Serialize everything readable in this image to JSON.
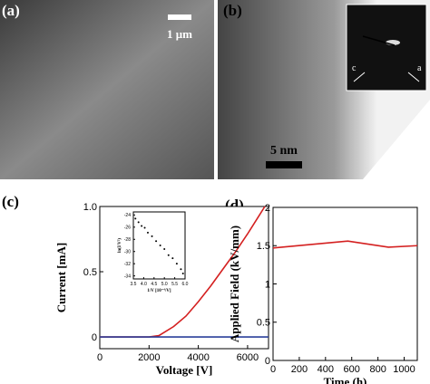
{
  "panel_labels": [
    "(a)",
    "(b)",
    "(c)",
    "(d)"
  ],
  "images": {
    "a_scale": "1 μm",
    "b_scale": "5 nm",
    "b_inset_left": "c",
    "b_inset_right": "a"
  },
  "chart_data": [
    {
      "type": "line",
      "y_label": "Current [mA]",
      "x_label": "Voltage [V]",
      "xlim": [
        0,
        6850
      ],
      "xticks": [
        0,
        2000,
        4000,
        6000
      ],
      "ylim": [
        -0.09,
        1.0
      ],
      "yticks": [
        0,
        0.5,
        {
          "value": 1,
          "label": "1.0"
        }
      ],
      "series": [
        {
          "color": "#d42020",
          "x": [
            0,
            2000,
            2400,
            3000,
            3500,
            4000,
            4500,
            5000,
            5500,
            6000,
            6500,
            6700
          ],
          "values": [
            0,
            0,
            0.01,
            0.08,
            0.16,
            0.27,
            0.39,
            0.52,
            0.65,
            0.79,
            0.94,
            1.0
          ]
        },
        {
          "color": "#2a3f9a",
          "x": [
            0,
            6850
          ],
          "values": [
            0,
            0
          ]
        }
      ]
    },
    {
      "type": "scatter",
      "y_label": "ln(I/V²)",
      "x_label": "1/V [10⁻⁴/V]",
      "xlim": [
        3.5,
        6.0
      ],
      "xticks": [
        3.5,
        {
          "value": 4,
          "label": "4.0"
        },
        4.5,
        {
          "value": 5,
          "label": "5.0"
        },
        5.5,
        {
          "value": 6,
          "label": "6.0"
        }
      ],
      "ylim": [
        -34.5,
        -23.5
      ],
      "yticks": [
        -24,
        -26,
        -28,
        -30,
        -32,
        -34
      ],
      "series": [
        {
          "color": "#000000",
          "x": [
            3.6,
            3.75,
            3.9,
            4.05,
            4.2,
            4.4,
            4.6,
            4.8,
            5.0,
            5.2,
            5.4,
            5.6,
            5.8,
            5.9
          ],
          "values": [
            -24.6,
            -25.2,
            -25.8,
            -26.1,
            -26.9,
            -27.5,
            -28.3,
            -29.0,
            -29.6,
            -30.6,
            -31.1,
            -32.0,
            -32.9,
            -33.6
          ]
        }
      ]
    },
    {
      "type": "line",
      "y_label": "Applied Field (kV/mm)",
      "x_label": "Time (h)",
      "xlim": [
        0,
        1100
      ],
      "xticks": [
        0,
        200,
        400,
        600,
        800,
        1000
      ],
      "ylim": [
        0,
        2
      ],
      "yticks": [
        0,
        0.5,
        1,
        1.5,
        2
      ],
      "series": [
        {
          "color": "#d42020",
          "x": [
            0,
            570,
            880,
            1100
          ],
          "values": [
            1.47,
            1.56,
            1.48,
            1.5
          ]
        }
      ]
    }
  ]
}
